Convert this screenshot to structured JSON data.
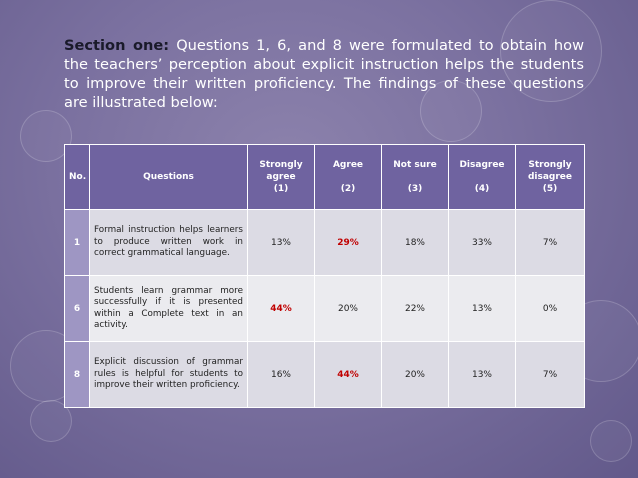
{
  "intro": {
    "lead": "Section one:",
    "text": " Questions 1, 6, and 8 were formulated to obtain how the teachers’ perception about explicit instruction helps the students to improve their written proficiency. The findings of these questions are illustrated below:"
  },
  "table": {
    "headers": {
      "no": "No.",
      "questions": "Questions",
      "strongly_agree": [
        "Strongly",
        "agree",
        "(1)"
      ],
      "agree": [
        "Agree",
        "",
        "(2)"
      ],
      "not_sure": [
        "Not sure",
        "",
        "(3)"
      ],
      "disagree": [
        "Disagree",
        "",
        "(4)"
      ],
      "strongly_disagree": [
        "Strongly",
        "disagree",
        "(5)"
      ]
    },
    "rows": [
      {
        "no": "1",
        "question": "Formal instruction helps learners to produce written work in correct grammatical language.",
        "values": [
          "13%",
          "29%",
          "18%",
          "33%",
          "7%"
        ]
      },
      {
        "no": "6",
        "question": "Students learn grammar more successfully if it is presented within a Complete text in an activity.",
        "values": [
          "44%",
          "20%",
          "22%",
          "13%",
          "0%"
        ]
      },
      {
        "no": "8",
        "question": "Explicit discussion of grammar rules is helpful for students to improve their written proficiency.",
        "values": [
          "16%",
          "44%",
          "20%",
          "13%",
          "7%"
        ]
      }
    ],
    "highlight_color": "#c00000"
  }
}
